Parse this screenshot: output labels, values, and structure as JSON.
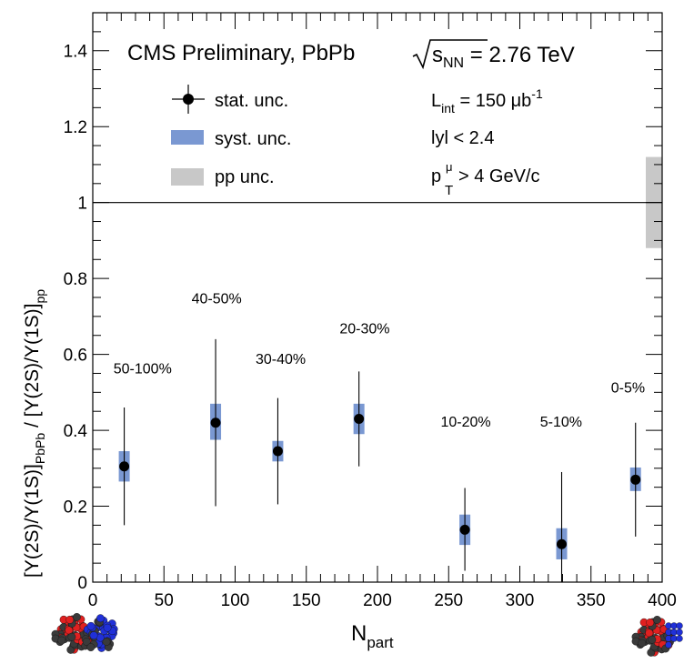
{
  "chart_data": {
    "type": "scatter",
    "title": "CMS Preliminary, PbPb",
    "energy": {
      "prefix": "s",
      "sub": "NN",
      "value": " = 2.76 TeV"
    },
    "xlabel": {
      "main": "N",
      "sub": "part"
    },
    "ylabel": "[Υ(2S)/Υ(1S)]PbPb / [Υ(2S)/Υ(1S)]pp",
    "ylabel_parts": {
      "num": "[Υ(2S)/Υ(1S)]",
      "num_sub": "PbPb",
      "sep": " / ",
      "den": "[Υ(2S)/Υ(1S)]",
      "den_sub": "pp"
    },
    "xlim": [
      0,
      400
    ],
    "ylim": [
      0,
      1.5
    ],
    "xticks": [
      "0",
      "50",
      "100",
      "150",
      "200",
      "250",
      "300",
      "350",
      "400"
    ],
    "yticks": [
      "0",
      "0.2",
      "0.4",
      "0.6",
      "0.8",
      "1",
      "1.2",
      "1.4"
    ],
    "reference_line": 1,
    "pp_uncertainty": {
      "low": 0.88,
      "high": 1.12
    },
    "legend": {
      "stat": "stat. unc.",
      "syst": "syst. unc.",
      "pp": "pp unc."
    },
    "info": {
      "lumi": {
        "main": "L",
        "sub": "int",
        "value": " = 150 μb",
        "sup": "-1"
      },
      "rapidity": "lyl < 2.4",
      "pt": {
        "main": "p",
        "sub": "T",
        "sup": "μ",
        "value": " > 4 GeV/c"
      }
    },
    "series": [
      {
        "points": [
          {
            "centrality": "50-100%",
            "x": 22.1,
            "y": 0.305,
            "stat_low": 0.15,
            "stat_high": 0.46,
            "syst_low": 0.265,
            "syst_high": 0.345
          },
          {
            "centrality": "40-50%",
            "x": 86.3,
            "y": 0.42,
            "stat_low": 0.2,
            "stat_high": 0.64,
            "syst_low": 0.375,
            "syst_high": 0.47
          },
          {
            "centrality": "30-40%",
            "x": 130.0,
            "y": 0.345,
            "stat_low": 0.205,
            "stat_high": 0.485,
            "syst_low": 0.318,
            "syst_high": 0.372
          },
          {
            "centrality": "20-30%",
            "x": 187.0,
            "y": 0.43,
            "stat_low": 0.305,
            "stat_high": 0.555,
            "syst_low": 0.39,
            "syst_high": 0.47
          },
          {
            "centrality": "10-20%",
            "x": 261.4,
            "y": 0.138,
            "stat_low": 0.03,
            "stat_high": 0.248,
            "syst_low": 0.098,
            "syst_high": 0.178
          },
          {
            "centrality": "5-10%",
            "x": 329.4,
            "y": 0.1,
            "stat_low": 0.0,
            "stat_high": 0.29,
            "syst_low": 0.06,
            "syst_high": 0.142
          },
          {
            "centrality": "0-5%",
            "x": 381.3,
            "y": 0.27,
            "stat_low": 0.12,
            "stat_high": 0.42,
            "syst_low": 0.24,
            "syst_high": 0.302
          }
        ]
      }
    ],
    "centrality_labels": [
      {
        "text": "50-100%",
        "x": 35,
        "y": 0.55
      },
      {
        "text": "40-50%",
        "x": 87,
        "y": 0.735
      },
      {
        "text": "30-40%",
        "x": 132,
        "y": 0.575
      },
      {
        "text": "20-30%",
        "x": 191,
        "y": 0.655
      },
      {
        "text": "10-20%",
        "x": 262,
        "y": 0.41
      },
      {
        "text": "5-10%",
        "x": 329,
        "y": 0.41
      },
      {
        "text": "0-5%",
        "x": 376,
        "y": 0.5
      }
    ],
    "colors": {
      "syst": "#7a98d2",
      "pp": "#c8c8c8",
      "marker": "#000000"
    }
  }
}
